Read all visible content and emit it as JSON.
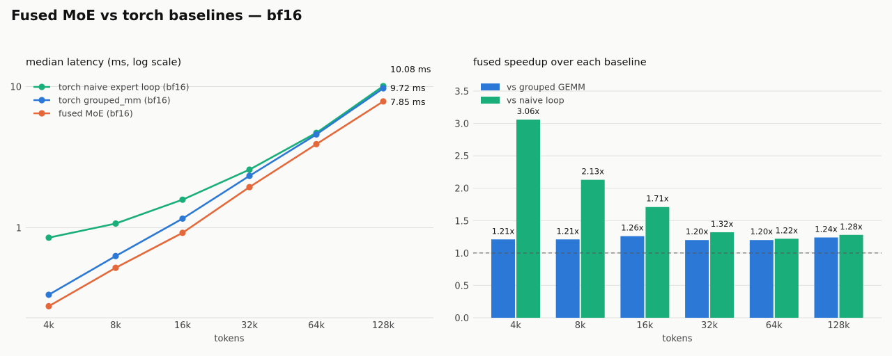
{
  "title": "Fused MoE vs torch baselines — bf16",
  "colors": {
    "naive": "#1aaf7a",
    "grouped": "#2b78d6",
    "fused": "#e4683a"
  },
  "chart_data": [
    {
      "type": "line",
      "title": "median latency (ms, log scale)",
      "xlabel": "tokens",
      "ylabel": "",
      "yscale": "log",
      "ylim": [
        0.1,
        10
      ],
      "yticks": [
        1,
        10
      ],
      "ytick_labels": [
        "1",
        "10"
      ],
      "categories": [
        "4k",
        "8k",
        "16k",
        "32k",
        "64k",
        "128k"
      ],
      "legend": "top-left",
      "grid": true,
      "series": [
        {
          "name": "torch naive expert loop (bf16)",
          "color_key": "naive",
          "values": [
            0.85,
            1.07,
            1.58,
            2.58,
            4.7,
            10.08
          ],
          "end_label": "10.08 ms"
        },
        {
          "name": "torch grouped_mm (bf16)",
          "color_key": "grouped",
          "values": [
            0.335,
            0.63,
            1.16,
            2.33,
            4.58,
            9.72
          ],
          "end_label": "9.72 ms"
        },
        {
          "name": "fused MoE (bf16)",
          "color_key": "fused",
          "values": [
            0.278,
            0.52,
            0.92,
            1.94,
            3.91,
            7.85
          ],
          "end_label": "7.85 ms"
        }
      ]
    },
    {
      "type": "bar",
      "title": "fused speedup over each baseline",
      "xlabel": "tokens",
      "ylabel": "",
      "ylim": [
        0,
        3.5
      ],
      "yticks": [
        0,
        0.5,
        1,
        1.5,
        2,
        2.5,
        3,
        3.5
      ],
      "ytick_labels": [
        "0.0",
        "0.5",
        "1.0",
        "1.5",
        "2.0",
        "2.5",
        "3.0",
        "3.5"
      ],
      "reference_line": 1.0,
      "legend": "top-left",
      "grid": true,
      "categories": [
        "4k",
        "8k",
        "16k",
        "32k",
        "64k",
        "128k"
      ],
      "series": [
        {
          "name": "vs grouped GEMM",
          "color_key": "grouped",
          "values": [
            1.21,
            1.21,
            1.26,
            1.2,
            1.2,
            1.24
          ],
          "labels": [
            "1.21x",
            "1.21x",
            "1.26x",
            "1.20x",
            "1.20x",
            "1.24x"
          ]
        },
        {
          "name": "vs naive loop",
          "color_key": "naive",
          "values": [
            3.06,
            2.13,
            1.71,
            1.32,
            1.22,
            1.28
          ],
          "labels": [
            "3.06x",
            "2.13x",
            "1.71x",
            "1.32x",
            "1.22x",
            "1.28x"
          ]
        }
      ]
    }
  ]
}
